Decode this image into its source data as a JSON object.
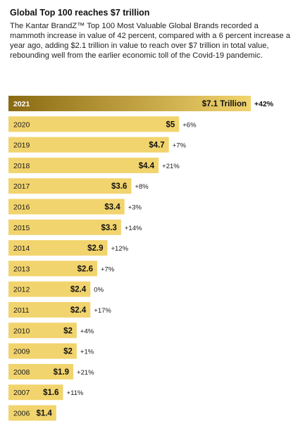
{
  "header": {
    "title": "Global Top 100 reaches $7 trillion",
    "intro": "The Kantar BrandZ™ Top 100 Most Valuable Global Brands recorded a mammoth increase in value of 42 percent, compared with a 6 percent increase a year ago, adding $2.1 trillion in value to reach over $7 trillion in total value, rebounding well from the earlier economic toll of the Covid-19 pandemic."
  },
  "colors": {
    "bar": "#f2d46e",
    "bar_highlight_start": "#8a6a12",
    "bar_highlight_end": "#f2d46e",
    "label_dark": "#111111"
  },
  "chart_data": {
    "type": "bar",
    "orientation": "horizontal",
    "unit": "Trillion USD",
    "categories": [
      "2021",
      "2020",
      "2019",
      "2018",
      "2017",
      "2016",
      "2015",
      "2014",
      "2013",
      "2012",
      "2011",
      "2010",
      "2009",
      "2008",
      "2007",
      "2006"
    ],
    "values": [
      7.1,
      5,
      4.7,
      4.4,
      3.6,
      3.4,
      3.3,
      2.9,
      2.6,
      2.4,
      2.4,
      2,
      2,
      1.9,
      1.6,
      1.4
    ],
    "value_labels": [
      "$7.1 Trillion",
      "$5",
      "$4.7",
      "$4.4",
      "$3.6",
      "$3.4",
      "$3.3",
      "$2.9",
      "$2.6",
      "$2.4",
      "$2.4",
      "$2",
      "$2",
      "$1.9",
      "$1.6",
      "$1.4"
    ],
    "change_labels": [
      "+42%",
      "+6%",
      "+7%",
      "+21%",
      "+8%",
      "+3%",
      "+14%",
      "+12%",
      "+7%",
      "0%",
      "+17%",
      "+4%",
      "+1%",
      "+21%",
      "+11%",
      ""
    ],
    "highlight_index": 0,
    "xlim": [
      0,
      7.1
    ],
    "title": "Global Top 100 reaches $7 trillion",
    "xlabel": "",
    "ylabel": ""
  }
}
